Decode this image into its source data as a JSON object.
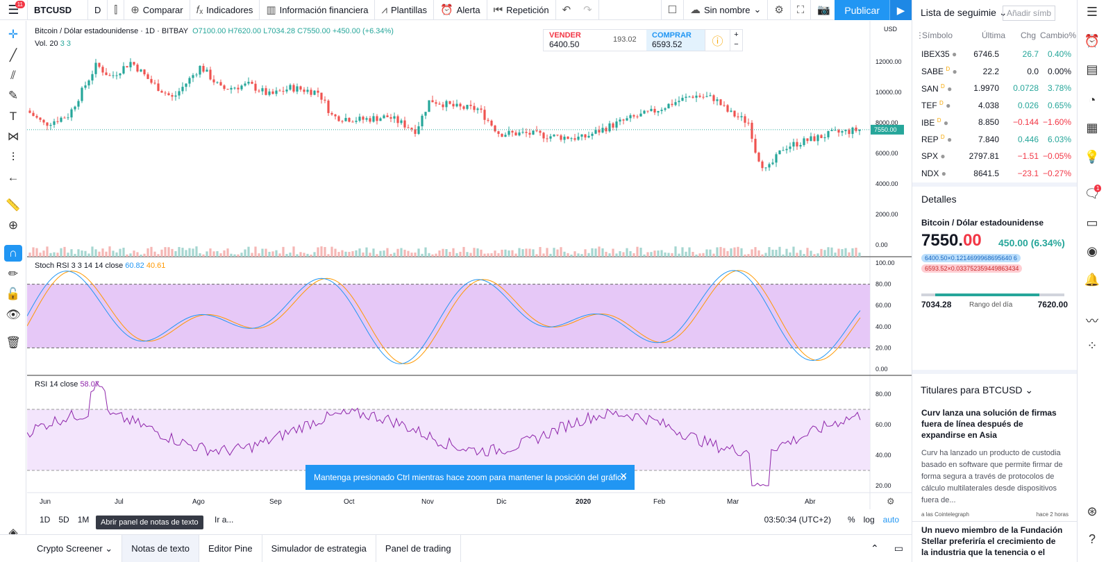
{
  "toolbar": {
    "notifications": "11",
    "symbol": "BTCUSD",
    "interval": "D",
    "compare": "Comparar",
    "indicators": "Indicadores",
    "financials": "Información financiera",
    "templates": "Plantillas",
    "alert": "Alerta",
    "replay": "Repetición",
    "layout_name": "Sin nombre",
    "publish": "Publicar"
  },
  "chart": {
    "title": "Bitcoin / Dólar estadounidense · 1D · BITBAY",
    "ohlc": "O7100.00  H7620.00  L7034.28  C7550.00  +450.00 (+6.34%)",
    "volume_label": "Vol. 20",
    "volume_values": "3  3",
    "currency": "USD",
    "last_price_label": "7550.00",
    "price_axis": [
      "12000.00",
      "10000.00",
      "8000.00",
      "6000.00",
      "4000.00",
      "2000.00",
      "0.00"
    ],
    "stoch_label": "Stoch RSI 3 3 14 14 close",
    "stoch_k": "60.82",
    "stoch_d": "40.61",
    "stoch_axis": [
      "100.00",
      "80.00",
      "60.00",
      "40.00",
      "20.00",
      "0.00"
    ],
    "rsi_label": "RSI 14 close",
    "rsi_value": "58.07",
    "rsi_axis": [
      "80.00",
      "60.00",
      "40.00",
      "20.00"
    ],
    "months": [
      "Jun",
      "Jul",
      "Ago",
      "Sep",
      "Oct",
      "Nov",
      "Dic",
      "2020",
      "Feb",
      "Mar",
      "Abr"
    ],
    "colors": {
      "up": "#26a69a",
      "down": "#ef5350",
      "stoch_k": "#2196f3",
      "stoch_d": "#ff9800",
      "rsi": "#8e24aa",
      "band": "#e1bee7"
    }
  },
  "trade": {
    "sell_label": "VENDER",
    "sell_price": "6400.50",
    "spread": "193.02",
    "buy_label": "COMPRAR",
    "buy_price": "6593.52"
  },
  "toast": "Mantenga presionado Ctrl mientras hace zoom para mantener la posición del gráfico",
  "timeframes": [
    "1D",
    "5D",
    "1M",
    "3",
    "Ir a..."
  ],
  "tooltip": "Abrir panel de notas de texto",
  "clock": "03:50:34 (UTC+2)",
  "scale_opts": [
    "%",
    "log",
    "auto"
  ],
  "bottom_tabs": [
    "Crypto Screener",
    "Notas de texto",
    "Editor Pine",
    "Simulador de estrategia",
    "Panel de trading"
  ],
  "watchlist": {
    "title": "Lista de seguimie",
    "add_symbol": "Añadir símb",
    "headers": {
      "symbol": "Símbolo",
      "last": "Última",
      "chg": "Chg",
      "pct": "Cambio%"
    },
    "rows": [
      {
        "sym": "IBEX35",
        "d": "",
        "last": "6746.5",
        "chg": "26.7",
        "pct": "0.40%",
        "dir": "pos"
      },
      {
        "sym": "SABE",
        "d": "D",
        "last": "22.2",
        "chg": "0.0",
        "pct": "0.00%",
        "dir": "neu"
      },
      {
        "sym": "SAN",
        "d": "D",
        "last": "1.9970",
        "chg": "0.0728",
        "pct": "3.78%",
        "dir": "pos"
      },
      {
        "sym": "TEF",
        "d": "D",
        "last": "4.038",
        "chg": "0.026",
        "pct": "0.65%",
        "dir": "pos"
      },
      {
        "sym": "IBE",
        "d": "D",
        "last": "8.850",
        "chg": "−0.144",
        "pct": "−1.60%",
        "dir": "neg"
      },
      {
        "sym": "REP",
        "d": "D",
        "last": "7.840",
        "chg": "0.446",
        "pct": "6.03%",
        "dir": "pos"
      },
      {
        "sym": "SPX",
        "d": "",
        "last": "2797.81",
        "chg": "−1.51",
        "pct": "−0.05%",
        "dir": "neg"
      },
      {
        "sym": "NDX",
        "d": "",
        "last": "8641.5",
        "chg": "−23.1",
        "pct": "−0.27%",
        "dir": "neg"
      }
    ]
  },
  "details": {
    "title": "Detalles",
    "name": "Bitcoin / Dólar estadounidense",
    "price_main": "7550.",
    "price_tail": "00",
    "change": "450.00 (6.34%)",
    "bid": "6400.50×0.1214699968695640 6",
    "ask": "6593.52×0.033752359449863434",
    "low": "7034.28",
    "range_label": "Rango del día",
    "high": "7620.00"
  },
  "news": {
    "header": "Titulares para BTCUSD",
    "title1": "Curv lanza una solución de firmas fuera de línea después de expandirse en Asia",
    "body1": "Curv ha lanzado un producto de custodia basado en software que permite firmar de forma segura a través de protocolos de cálculo multilaterales desde dispositivos fuera de...",
    "source1": "a las Cointelegraph",
    "time1": "hace 2 horas",
    "title2": "Un nuevo miembro de la Fundación Stellar preferiría el crecimiento de la industria que la tenencia o el"
  },
  "sidebar_badge": "1"
}
